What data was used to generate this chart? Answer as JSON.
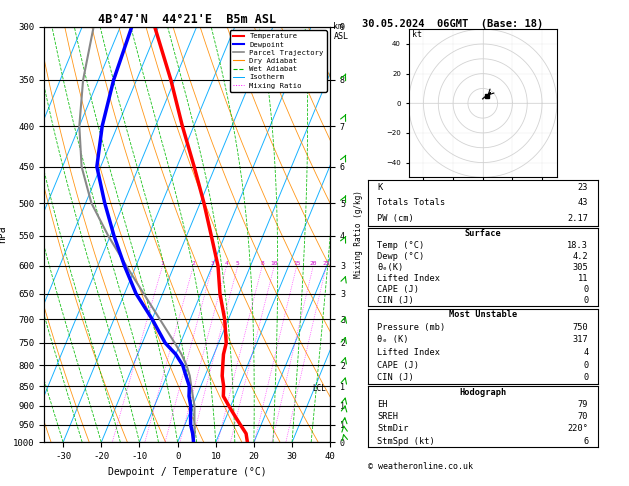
{
  "title_left": "4B°47'N  44°21'E  B5m ASL",
  "title_right": "30.05.2024  06GMT  (Base: 18)",
  "xlabel": "Dewpoint / Temperature (°C)",
  "ylabel_left": "hPa",
  "pressure_levels": [
    300,
    350,
    400,
    450,
    500,
    550,
    600,
    650,
    700,
    750,
    800,
    850,
    900,
    950,
    1000
  ],
  "temp_data": {
    "pressure": [
      1000,
      975,
      950,
      925,
      900,
      875,
      850,
      825,
      800,
      775,
      750,
      700,
      650,
      600,
      550,
      500,
      450,
      400,
      350,
      300
    ],
    "temp_c": [
      18.3,
      17.0,
      14.5,
      12.0,
      9.5,
      7.0,
      6.0,
      4.5,
      3.5,
      2.5,
      2.0,
      -1.0,
      -5.0,
      -8.5,
      -13.5,
      -19.0,
      -25.5,
      -33.0,
      -41.0,
      -51.0
    ]
  },
  "dewp_data": {
    "pressure": [
      1000,
      975,
      950,
      925,
      900,
      875,
      850,
      825,
      800,
      775,
      750,
      700,
      650,
      600,
      550,
      500,
      450,
      400,
      350,
      300
    ],
    "dewp_c": [
      4.2,
      3.0,
      1.5,
      0.5,
      -0.5,
      -2.0,
      -3.0,
      -5.0,
      -7.0,
      -10.0,
      -14.0,
      -20.0,
      -27.0,
      -33.0,
      -39.0,
      -45.0,
      -51.0,
      -54.0,
      -56.0,
      -57.0
    ]
  },
  "parcel_data": {
    "pressure": [
      1000,
      975,
      950,
      925,
      900,
      875,
      850,
      825,
      800,
      775,
      750,
      700,
      650,
      600,
      550,
      500,
      450,
      400,
      350,
      300
    ],
    "temp_c": [
      4.2,
      3.5,
      2.5,
      1.5,
      0.5,
      -1.0,
      -2.5,
      -4.0,
      -6.0,
      -8.5,
      -11.5,
      -18.0,
      -25.0,
      -32.5,
      -40.5,
      -48.5,
      -55.0,
      -60.0,
      -64.0,
      -67.0
    ]
  },
  "x_min": -35,
  "x_max": 40,
  "p_min": 300,
  "p_max": 1000,
  "skew_per_decade": 45,
  "colors": {
    "temperature": "#ff0000",
    "dewpoint": "#0000ff",
    "parcel": "#888888",
    "dry_adiabat": "#ff8c00",
    "wet_adiabat": "#00bb00",
    "isotherm": "#00aaff",
    "mixing_ratio": "#ff00ff",
    "background": "#ffffff",
    "grid": "#000000"
  },
  "stats": {
    "K": 23,
    "Totals_Totals": 43,
    "PW_cm": 2.17,
    "Surface_Temp": 18.3,
    "Surface_Dewp": 4.2,
    "Surface_theta_e": 305,
    "Surface_LI": 11,
    "Surface_CAPE": 0,
    "Surface_CIN": 0,
    "MU_Pressure": 750,
    "MU_theta_e": 317,
    "MU_LI": 4,
    "MU_CAPE": 0,
    "MU_CIN": 0,
    "EH": 79,
    "SREH": 70,
    "StmDir": "220°",
    "StmSpd_kt": 6
  },
  "mixing_ratio_lines": [
    1,
    2,
    3,
    4,
    5,
    8,
    10,
    15,
    20,
    25
  ],
  "km_ticks": {
    "pressures": [
      300,
      350,
      400,
      450,
      500,
      550,
      600,
      650,
      700,
      750,
      800,
      850,
      900,
      950,
      1000
    ],
    "km_vals": [
      9,
      8,
      7,
      6,
      5,
      4,
      3,
      3,
      3,
      2,
      2,
      1,
      1,
      1,
      0
    ]
  },
  "lcl_pressure": 855,
  "wind_data": {
    "km": [
      0.1,
      0.3,
      0.5,
      0.8,
      1.0,
      1.5,
      2.0,
      2.5,
      3.0,
      4.0,
      5.0,
      6.0,
      7.0,
      8.0,
      9.0
    ],
    "u": [
      -1,
      -1,
      1,
      2,
      3,
      4,
      5,
      5,
      4,
      5,
      6,
      5,
      4,
      3,
      2
    ],
    "v": [
      2,
      3,
      4,
      5,
      6,
      7,
      8,
      8,
      7,
      7,
      6,
      5,
      4,
      3,
      2
    ]
  },
  "hodograph_u": [
    0,
    1,
    3,
    4,
    5,
    5,
    4,
    3
  ],
  "hodograph_v": [
    3,
    4,
    5,
    6,
    7,
    7,
    6,
    5
  ],
  "copyright": "© weatheronline.co.uk"
}
